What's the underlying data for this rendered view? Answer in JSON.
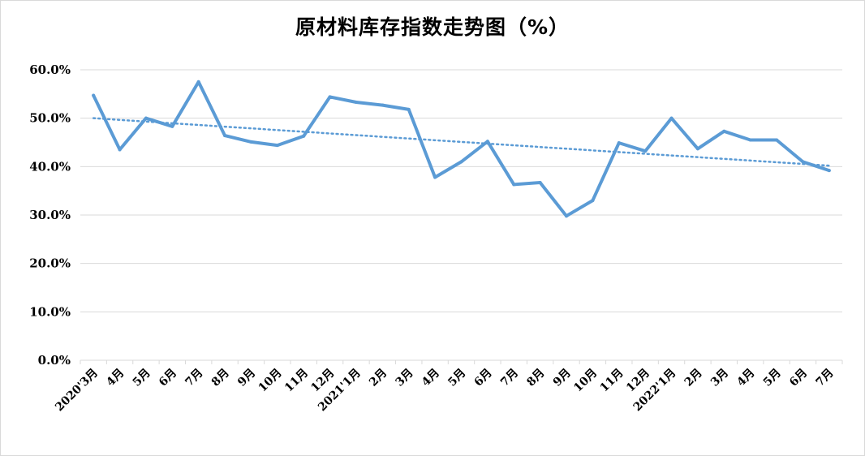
{
  "chart_data": {
    "type": "line",
    "title": "原材料库存指数走势图（%）",
    "xlabel": "",
    "ylabel": "",
    "ylim": [
      0,
      60
    ],
    "yticks": [
      0,
      10,
      20,
      30,
      40,
      50,
      60
    ],
    "ytick_labels": [
      "0.0%",
      "10.0%",
      "20.0%",
      "30.0%",
      "40.0%",
      "50.0%",
      "60.0%"
    ],
    "grid": true,
    "legend": "none",
    "categories": [
      "2020'3月",
      "4月",
      "5月",
      "6月",
      "7月",
      "8月",
      "9月",
      "10月",
      "11月",
      "12月",
      "2021'1月",
      "2月",
      "3月",
      "4月",
      "5月",
      "6月",
      "7月",
      "8月",
      "9月",
      "10月",
      "11月",
      "12月",
      "2022'1月",
      "2月",
      "3月",
      "4月",
      "5月",
      "6月",
      "7月"
    ],
    "series": [
      {
        "values": [
          54.7,
          43.5,
          50.0,
          48.3,
          57.5,
          46.4,
          45.1,
          44.4,
          46.3,
          54.4,
          53.3,
          52.7,
          51.8,
          37.8,
          41.0,
          45.2,
          36.3,
          36.7,
          29.8,
          33.0,
          44.9,
          43.2,
          50.0,
          43.7,
          47.3,
          45.5,
          45.5,
          41.0,
          39.2
        ],
        "color": "#5b9bd5"
      }
    ],
    "trendline": {
      "type": "linear",
      "style": "dotted",
      "color": "#5b9bd5",
      "start": 50.0,
      "end": 40.2
    }
  }
}
